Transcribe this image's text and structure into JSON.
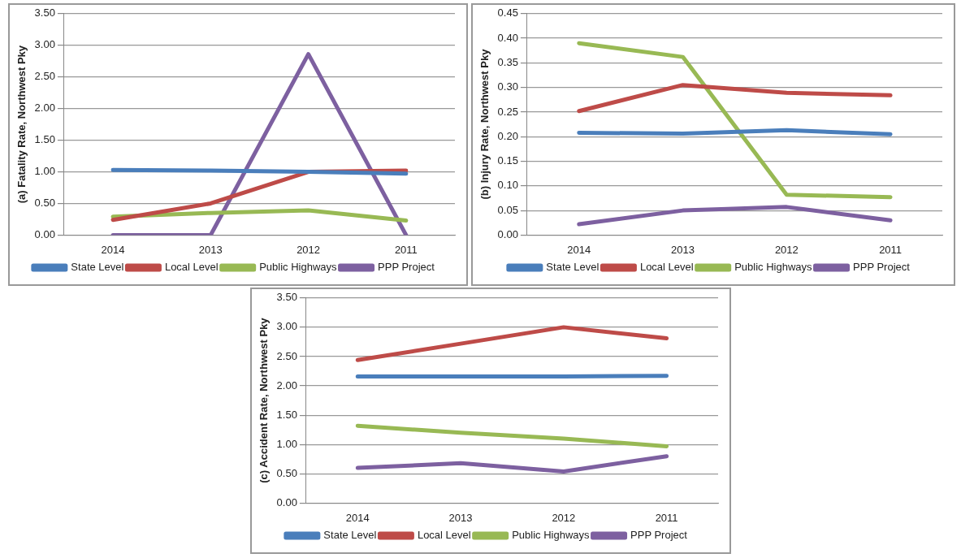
{
  "chart_data": [
    {
      "type": "line",
      "ylabel": "(a) Fatality Rate, Northwest Pky",
      "categories": [
        "2014",
        "2013",
        "2012",
        "2011"
      ],
      "ylim": [
        0,
        3.5
      ],
      "yticks": [
        {
          "value": 0,
          "label": "0.00"
        },
        {
          "value": 0.5,
          "label": "0.50"
        },
        {
          "value": 1,
          "label": "1.00"
        },
        {
          "value": 1.5,
          "label": "1.50"
        },
        {
          "value": 2,
          "label": "2.00"
        },
        {
          "value": 2.5,
          "label": "2.50"
        },
        {
          "value": 3,
          "label": "3.00"
        },
        {
          "value": 3.5,
          "label": "3.50"
        }
      ],
      "grid": "y",
      "legend": "bottom",
      "marker": "none",
      "line_style": "solid",
      "series": [
        {
          "name": "State Level",
          "color": "#4a7ebb",
          "values": [
            1.03,
            1.02,
            1.0,
            0.97
          ]
        },
        {
          "name": "Local Level",
          "color": "#be4b48",
          "values": [
            0.24,
            0.5,
            1.0,
            1.02
          ]
        },
        {
          "name": "Public Highways",
          "color": "#98b954",
          "values": [
            0.29,
            0.35,
            0.39,
            0.23
          ]
        },
        {
          "name": "PPP Project",
          "color": "#7d60a0",
          "values": [
            0,
            0,
            2.86,
            0
          ]
        }
      ]
    },
    {
      "type": "line",
      "ylabel": "(b) Injury Rate, Northwest Pky",
      "categories": [
        "2014",
        "2013",
        "2012",
        "2011"
      ],
      "ylim": [
        0,
        0.45
      ],
      "yticks": [
        {
          "value": 0,
          "label": "0.00"
        },
        {
          "value": 0.05,
          "label": "0.05"
        },
        {
          "value": 0.1,
          "label": "0.10"
        },
        {
          "value": 0.15,
          "label": "0.15"
        },
        {
          "value": 0.2,
          "label": "0.20"
        },
        {
          "value": 0.25,
          "label": "0.25"
        },
        {
          "value": 0.3,
          "label": "0.30"
        },
        {
          "value": 0.35,
          "label": "0.35"
        },
        {
          "value": 0.4,
          "label": "0.40"
        },
        {
          "value": 0.45,
          "label": "0.45"
        }
      ],
      "grid": "y",
      "legend": "bottom",
      "marker": "none",
      "line_style": "solid",
      "series": [
        {
          "name": "State Level",
          "color": "#4a7ebb",
          "values": [
            0.208,
            0.206,
            0.213,
            0.205
          ]
        },
        {
          "name": "Local Level",
          "color": "#be4b48",
          "values": [
            0.252,
            0.305,
            0.289,
            0.284
          ]
        },
        {
          "name": "Public Highways",
          "color": "#98b954",
          "values": [
            0.39,
            0.362,
            0.082,
            0.077
          ]
        },
        {
          "name": "PPP Project",
          "color": "#7d60a0",
          "values": [
            0.022,
            0.05,
            0.057,
            0.03
          ]
        }
      ]
    },
    {
      "type": "line",
      "ylabel": "(c) Accident Rate, Northwest Pky",
      "categories": [
        "2014",
        "2013",
        "2012",
        "2011"
      ],
      "ylim": [
        0,
        3.5
      ],
      "yticks": [
        {
          "value": 0,
          "label": "0.00"
        },
        {
          "value": 0.5,
          "label": "0.50"
        },
        {
          "value": 1,
          "label": "1.00"
        },
        {
          "value": 1.5,
          "label": "1.50"
        },
        {
          "value": 2,
          "label": "2.00"
        },
        {
          "value": 2.5,
          "label": "2.50"
        },
        {
          "value": 3,
          "label": "3.00"
        },
        {
          "value": 3.5,
          "label": "3.50"
        }
      ],
      "grid": "y",
      "legend": "bottom",
      "marker": "none",
      "line_style": "solid",
      "series": [
        {
          "name": "State Level",
          "color": "#4a7ebb",
          "values": [
            2.16,
            2.16,
            2.16,
            2.17
          ]
        },
        {
          "name": "Local Level",
          "color": "#be4b48",
          "values": [
            2.44,
            2.72,
            3.0,
            2.81
          ]
        },
        {
          "name": "Public Highways",
          "color": "#98b954",
          "values": [
            1.32,
            1.2,
            1.1,
            0.97
          ]
        },
        {
          "name": "PPP Project",
          "color": "#7d60a0",
          "values": [
            0.6,
            0.68,
            0.54,
            0.8
          ]
        }
      ]
    }
  ]
}
